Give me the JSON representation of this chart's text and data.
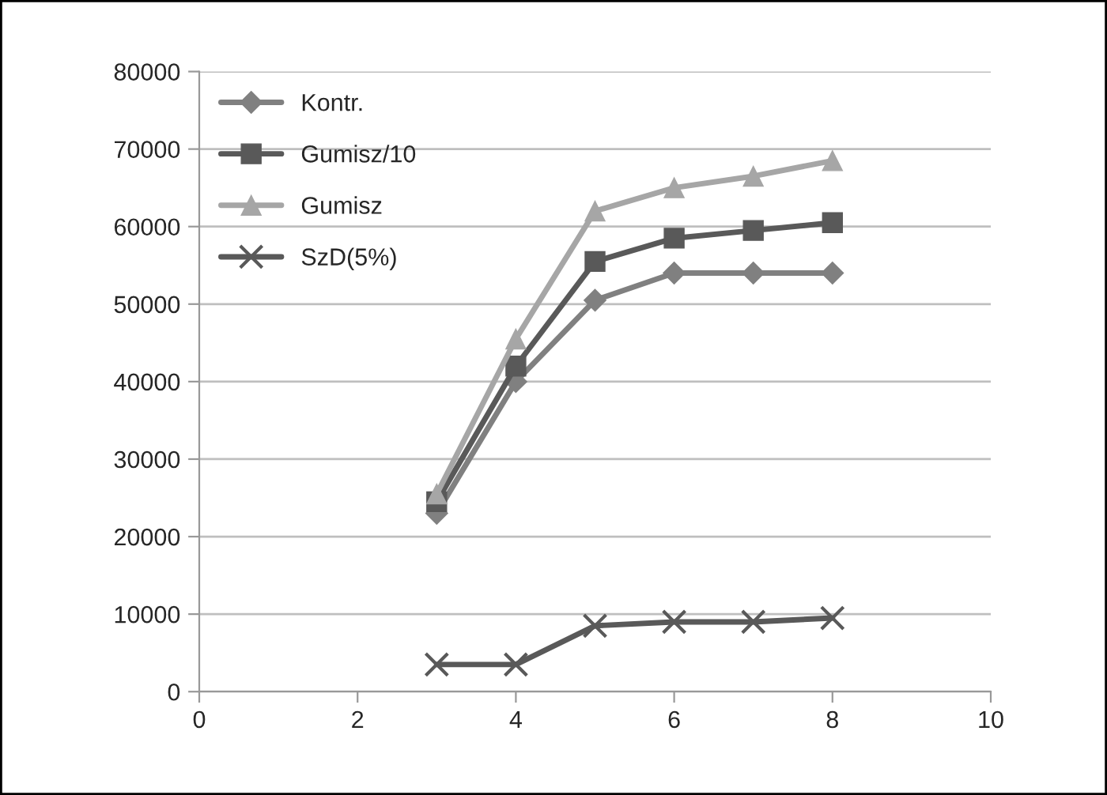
{
  "chart_data": {
    "type": "line",
    "xlim": [
      0,
      10
    ],
    "xticks": [
      0,
      2,
      4,
      6,
      8,
      10
    ],
    "ylim": [
      0,
      80000
    ],
    "yticks": [
      0,
      10000,
      20000,
      30000,
      40000,
      50000,
      60000,
      70000,
      80000
    ],
    "grid": "y",
    "legend": "top left",
    "series": [
      {
        "name": "Kontr.",
        "color": "#808080",
        "marker": "diamond",
        "x": [
          3,
          4,
          5,
          6,
          7,
          8
        ],
        "values": [
          23000,
          40000,
          50500,
          54000,
          54000,
          54000
        ]
      },
      {
        "name": "Gumisz/10",
        "color": "#595959",
        "marker": "square",
        "x": [
          3,
          4,
          5,
          6,
          7,
          8
        ],
        "values": [
          24500,
          42000,
          55500,
          58500,
          59500,
          60500
        ]
      },
      {
        "name": "Gumisz",
        "color": "#a6a6a6",
        "marker": "triangle",
        "x": [
          3,
          4,
          5,
          6,
          7,
          8
        ],
        "values": [
          25500,
          45500,
          62000,
          65000,
          66500,
          68500
        ]
      },
      {
        "name": "SzD(5%)",
        "color": "#595959",
        "marker": "cross",
        "x": [
          3,
          4,
          5,
          6,
          7,
          8
        ],
        "values": [
          3500,
          3500,
          8500,
          9000,
          9000,
          9500
        ]
      }
    ]
  }
}
